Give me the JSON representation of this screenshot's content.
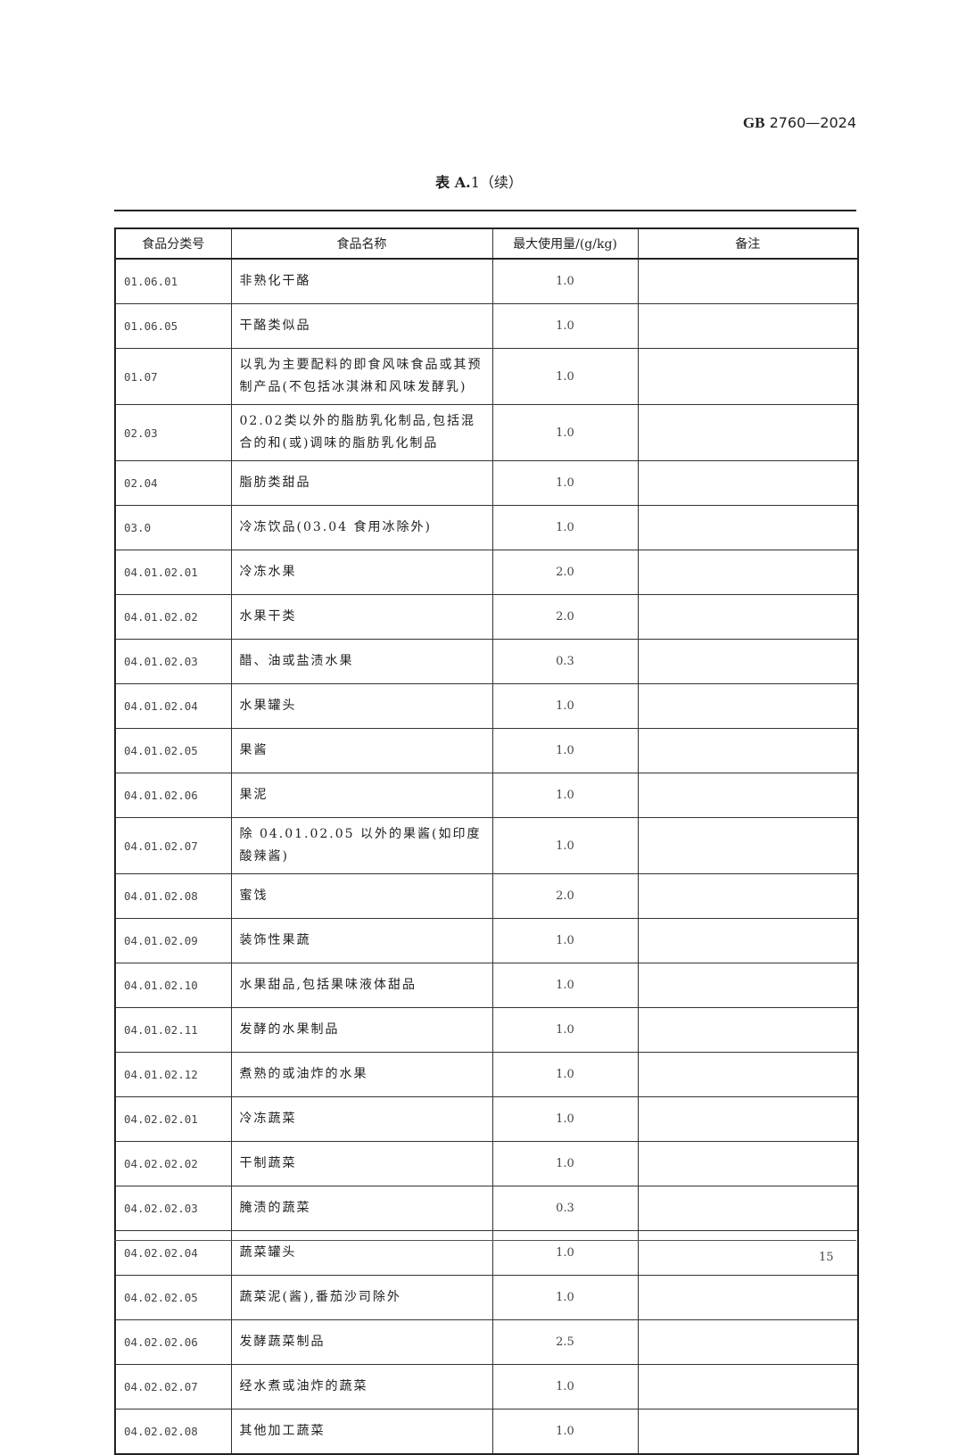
{
  "header": {
    "standard_prefix": "GB",
    "standard_number": "2760—2024"
  },
  "table_title": {
    "bold": "表 A.",
    "rest": "1（续）"
  },
  "table": {
    "columns": [
      "食品分类号",
      "食品名称",
      "最大使用量/(g/kg)",
      "备注"
    ],
    "rows": [
      [
        "01.06.01",
        "非熟化干酪",
        "1.0",
        ""
      ],
      [
        "01.06.05",
        "干酪类似品",
        "1.0",
        ""
      ],
      [
        "01.07",
        "以乳为主要配料的即食风味食品或其预制产品(不包括冰淇淋和风味发酵乳)",
        "1.0",
        ""
      ],
      [
        "02.03",
        "02.02类以外的脂肪乳化制品,包括混合的和(或)调味的脂肪乳化制品",
        "1.0",
        ""
      ],
      [
        "02.04",
        "脂肪类甜品",
        "1.0",
        ""
      ],
      [
        "03.0",
        "冷冻饮品(03.04 食用冰除外)",
        "1.0",
        ""
      ],
      [
        "04.01.02.01",
        "冷冻水果",
        "2.0",
        ""
      ],
      [
        "04.01.02.02",
        "水果干类",
        "2.0",
        ""
      ],
      [
        "04.01.02.03",
        "醋、油或盐渍水果",
        "0.3",
        ""
      ],
      [
        "04.01.02.04",
        "水果罐头",
        "1.0",
        ""
      ],
      [
        "04.01.02.05",
        "果酱",
        "1.0",
        ""
      ],
      [
        "04.01.02.06",
        "果泥",
        "1.0",
        ""
      ],
      [
        "04.01.02.07",
        "除 04.01.02.05 以外的果酱(如印度酸辣酱)",
        "1.0",
        ""
      ],
      [
        "04.01.02.08",
        "蜜饯",
        "2.0",
        ""
      ],
      [
        "04.01.02.09",
        "装饰性果蔬",
        "1.0",
        ""
      ],
      [
        "04.01.02.10",
        "水果甜品,包括果味液体甜品",
        "1.0",
        ""
      ],
      [
        "04.01.02.11",
        "发酵的水果制品",
        "1.0",
        ""
      ],
      [
        "04.01.02.12",
        "煮熟的或油炸的水果",
        "1.0",
        ""
      ],
      [
        "04.02.02.01",
        "冷冻蔬菜",
        "1.0",
        ""
      ],
      [
        "04.02.02.02",
        "干制蔬菜",
        "1.0",
        ""
      ],
      [
        "04.02.02.03",
        "腌渍的蔬菜",
        "0.3",
        ""
      ],
      [
        "04.02.02.04",
        "蔬菜罐头",
        "1.0",
        ""
      ],
      [
        "04.02.02.05",
        "蔬菜泥(酱),番茄沙司除外",
        "1.0",
        ""
      ],
      [
        "04.02.02.06",
        "发酵蔬菜制品",
        "2.5",
        ""
      ],
      [
        "04.02.02.07",
        "经水煮或油炸的蔬菜",
        "1.0",
        ""
      ],
      [
        "04.02.02.08",
        "其他加工蔬菜",
        "1.0",
        ""
      ]
    ]
  },
  "page_number": "15"
}
